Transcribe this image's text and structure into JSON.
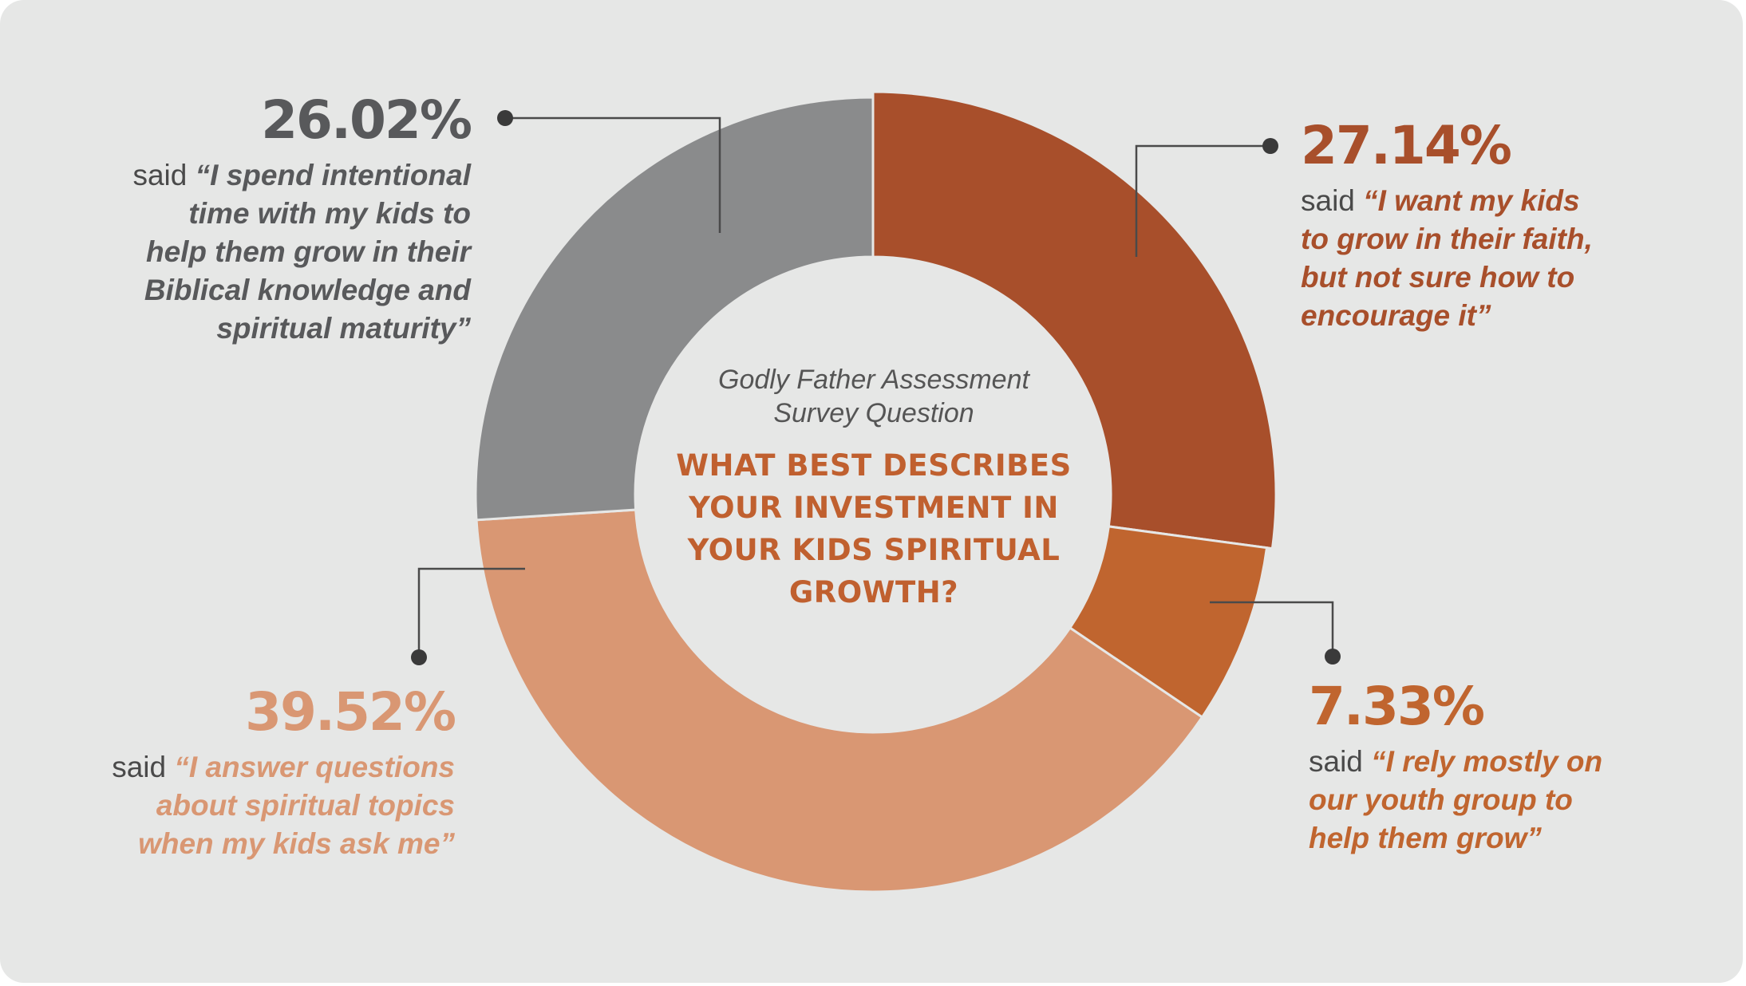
{
  "colors": {
    "background": "#e6e7e6",
    "leader": "#4a4a4a",
    "slice_faith": "#a84f2b",
    "slice_youth": "#c0652f",
    "slice_answer": "#d99773",
    "slice_intentional": "#8a8b8c"
  },
  "center": {
    "subtitle_line1": "Godly Father Assessment",
    "subtitle_line2": "Survey Question",
    "question_line1": "WHAT BEST DESCRIBES",
    "question_line2": "YOUR INVESTMENT IN",
    "question_line3": "YOUR KIDS SPIRITUAL",
    "question_line4": "GROWTH?"
  },
  "labels": {
    "faith": {
      "pct": "27.14%",
      "said": "said",
      "lines": [
        "“I want my kids",
        "to grow in their faith,",
        "but not sure how to",
        "encourage it”"
      ]
    },
    "youth": {
      "pct": "7.33%",
      "said": "said",
      "lines": [
        "“I rely mostly on",
        "our youth group to",
        "help them grow”"
      ]
    },
    "answer": {
      "pct": "39.52%",
      "said": "said",
      "lines": [
        "“I answer questions",
        "about spiritual topics",
        "when my kids ask me”"
      ]
    },
    "intentional": {
      "pct": "26.02%",
      "said": "said",
      "lines": [
        "“I spend intentional",
        "time with my kids to",
        "help them grow in their",
        "Biblical knowledge and",
        "spiritual maturity”"
      ]
    }
  },
  "chart_data": {
    "type": "pie",
    "categories": [
      "I want my kids to grow in their faith, but not sure how to encourage it",
      "I rely mostly on our youth group to help them grow",
      "I answer questions about spiritual topics when my kids ask me",
      "I spend intentional time with my kids to help them grow in their Biblical knowledge and spiritual maturity"
    ],
    "values": [
      27.14,
      7.33,
      39.52,
      26.02
    ],
    "title": "WHAT BEST DESCRIBES YOUR INVESTMENT IN YOUR KIDS SPIRITUAL GROWTH?",
    "subtitle": "Godly Father Assessment Survey Question",
    "hole": "donut",
    "direction": "clockwise from top"
  }
}
